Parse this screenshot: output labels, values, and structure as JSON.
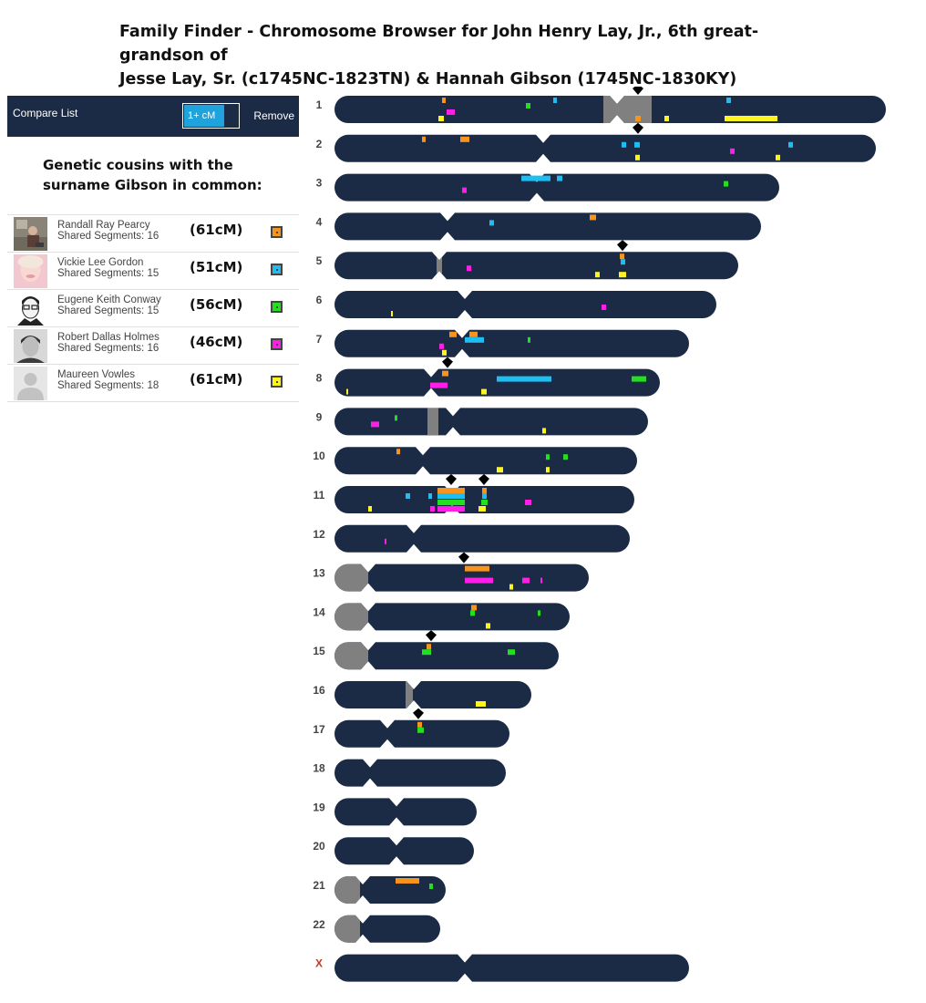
{
  "title": {
    "line1": "Family Finder - Chromosome Browser for John Henry Lay, Jr., 6th great-grandson of",
    "line2": "Jesse Lay, Sr. (c1745NC-1823TN) & Hannah Gibson (1745NC-1830KY)"
  },
  "compare": {
    "title": "Compare List",
    "threshold": "1+ cM",
    "remove": "Remove"
  },
  "subheading": {
    "line1": "Genetic cousins with the",
    "line2": "surname Gibson in common:"
  },
  "matches": [
    {
      "name": "Randall Ray Pearcy",
      "segments": "Shared Segments: 16",
      "cm": "(61cM)",
      "color": "#f7941d",
      "avatar": "photo-outdoor"
    },
    {
      "name": "Vickie Lee Gordon",
      "segments": "Shared Segments: 15",
      "cm": "(51cM)",
      "color": "#1fbef0",
      "avatar": "photo-pink"
    },
    {
      "name": "Eugene Keith Conway",
      "segments": "Shared Segments: 15",
      "cm": "(56cM)",
      "color": "#22e01e",
      "avatar": "photo-sketch"
    },
    {
      "name": "Robert Dallas Holmes",
      "segments": "Shared Segments: 16",
      "cm": "(46cM)",
      "color": "#ff1ee8",
      "avatar": "photo-bw"
    },
    {
      "name": "Maureen Vowles",
      "segments": "Shared Segments: 18",
      "cm": "(61cM)",
      "color": "#fff51e",
      "avatar": "default-person-icon"
    }
  ],
  "colors": {
    "chromosome": "#1c2b45",
    "heterochromatin": "#808080",
    "x_label": "#c0392b"
  },
  "chromosomes": [
    {
      "label": "1",
      "length": 605,
      "centromere": 310,
      "gray": [
        295,
        348
      ],
      "segments": [
        {
          "m": 0,
          "s": 118,
          "e": 122,
          "r": 0
        },
        {
          "m": 4,
          "s": 114,
          "e": 120,
          "r": 3
        },
        {
          "m": 3,
          "s": 123,
          "e": 132,
          "r": 2
        },
        {
          "m": 2,
          "s": 210,
          "e": 215,
          "r": 1
        },
        {
          "m": 1,
          "s": 240,
          "e": 244,
          "r": 0
        },
        {
          "m": 0,
          "s": 330,
          "e": 336,
          "r": 3
        },
        {
          "m": 4,
          "s": 362,
          "e": 367,
          "r": 3
        },
        {
          "m": 1,
          "s": 430,
          "e": 435,
          "r": 0
        },
        {
          "m": 4,
          "s": 428,
          "e": 486,
          "r": 3
        }
      ],
      "markers": [
        333
      ]
    },
    {
      "label": "2",
      "length": 594,
      "centromere": 229,
      "segments": [
        {
          "m": 0,
          "s": 96,
          "e": 100,
          "r": 0
        },
        {
          "m": 0,
          "s": 138,
          "e": 148,
          "r": 0
        },
        {
          "m": 1,
          "s": 315,
          "e": 320,
          "r": 1
        },
        {
          "m": 1,
          "s": 329,
          "e": 335,
          "r": 1
        },
        {
          "m": 4,
          "s": 330,
          "e": 335,
          "r": 3
        },
        {
          "m": 3,
          "s": 434,
          "e": 439,
          "r": 2
        },
        {
          "m": 4,
          "s": 484,
          "e": 489,
          "r": 3
        },
        {
          "m": 1,
          "s": 498,
          "e": 503,
          "r": 1
        }
      ],
      "markers": [
        333
      ]
    },
    {
      "label": "3",
      "length": 488,
      "centromere": 222,
      "segments": [
        {
          "m": 1,
          "s": 205,
          "e": 237,
          "r": 0
        },
        {
          "m": 1,
          "s": 244,
          "e": 250,
          "r": 0
        },
        {
          "m": 3,
          "s": 140,
          "e": 145,
          "r": 2
        },
        {
          "m": 2,
          "s": 427,
          "e": 432,
          "r": 1
        }
      ],
      "markers": []
    },
    {
      "label": "4",
      "length": 468,
      "centromere": 124,
      "segments": [
        {
          "m": 0,
          "s": 280,
          "e": 287,
          "r": 0
        },
        {
          "m": 1,
          "s": 170,
          "e": 175,
          "r": 1
        }
      ],
      "markers": []
    },
    {
      "label": "5",
      "length": 443,
      "centromere": 115,
      "gray": [
        112,
        118
      ],
      "segments": [
        {
          "m": 0,
          "s": 313,
          "e": 318,
          "r": 0
        },
        {
          "m": 1,
          "s": 314,
          "e": 319,
          "r": 1
        },
        {
          "m": 3,
          "s": 145,
          "e": 150,
          "r": 2
        },
        {
          "m": 4,
          "s": 286,
          "e": 291,
          "r": 3
        },
        {
          "m": 4,
          "s": 312,
          "e": 320,
          "r": 3
        }
      ],
      "markers": [
        316
      ]
    },
    {
      "label": "6",
      "length": 419,
      "centromere": 143,
      "segments": [
        {
          "m": 4,
          "s": 62,
          "e": 64,
          "r": 3
        },
        {
          "m": 3,
          "s": 293,
          "e": 298,
          "r": 2
        }
      ],
      "markers": []
    },
    {
      "label": "7",
      "length": 389,
      "centromere": 140,
      "segments": [
        {
          "m": 0,
          "s": 126,
          "e": 134,
          "r": 0
        },
        {
          "m": 0,
          "s": 148,
          "e": 157,
          "r": 0
        },
        {
          "m": 1,
          "s": 143,
          "e": 164,
          "r": 1
        },
        {
          "m": 2,
          "s": 212,
          "e": 215,
          "r": 1
        },
        {
          "m": 3,
          "s": 115,
          "e": 120,
          "r": 2
        },
        {
          "m": 4,
          "s": 118,
          "e": 123,
          "r": 3
        }
      ],
      "markers": []
    },
    {
      "label": "8",
      "length": 357,
      "centromere": 106,
      "segments": [
        {
          "m": 0,
          "s": 118,
          "e": 125,
          "r": 0
        },
        {
          "m": 1,
          "s": 178,
          "e": 238,
          "r": 1
        },
        {
          "m": 2,
          "s": 326,
          "e": 342,
          "r": 1
        },
        {
          "m": 3,
          "s": 105,
          "e": 124,
          "r": 2
        },
        {
          "m": 4,
          "s": 161,
          "e": 167,
          "r": 3
        },
        {
          "m": 4,
          "s": 13,
          "e": 15,
          "r": 3
        }
      ],
      "markers": [
        124
      ]
    },
    {
      "label": "9",
      "length": 344,
      "centromere": 130,
      "gray": [
        102,
        114
      ],
      "segments": [
        {
          "m": 3,
          "s": 40,
          "e": 49,
          "r": 2
        },
        {
          "m": 2,
          "s": 66,
          "e": 69,
          "r": 1
        },
        {
          "m": 4,
          "s": 228,
          "e": 232,
          "r": 3
        }
      ],
      "markers": []
    },
    {
      "label": "10",
      "length": 332,
      "centromere": 97,
      "segments": [
        {
          "m": 0,
          "s": 68,
          "e": 72,
          "r": 0
        },
        {
          "m": 2,
          "s": 232,
          "e": 236,
          "r": 1
        },
        {
          "m": 2,
          "s": 251,
          "e": 256,
          "r": 1
        },
        {
          "m": 4,
          "s": 178,
          "e": 185,
          "r": 3
        },
        {
          "m": 4,
          "s": 232,
          "e": 236,
          "r": 3
        }
      ],
      "markers": []
    },
    {
      "label": "11",
      "length": 329,
      "centromere": 129,
      "segments": [
        {
          "m": 0,
          "s": 113,
          "e": 143,
          "r": 0
        },
        {
          "m": 1,
          "s": 113,
          "e": 143,
          "r": 1
        },
        {
          "m": 2,
          "s": 113,
          "e": 143,
          "r": 2
        },
        {
          "m": 3,
          "s": 113,
          "e": 143,
          "r": 3
        },
        {
          "m": 1,
          "s": 78,
          "e": 83,
          "r": 1
        },
        {
          "m": 1,
          "s": 103,
          "e": 107,
          "r": 1
        },
        {
          "m": 3,
          "s": 105,
          "e": 110,
          "r": 3
        },
        {
          "m": 0,
          "s": 162,
          "e": 167,
          "r": 0
        },
        {
          "m": 1,
          "s": 162,
          "e": 167,
          "r": 1
        },
        {
          "m": 2,
          "s": 161,
          "e": 168,
          "r": 2
        },
        {
          "m": 4,
          "s": 158,
          "e": 166,
          "r": 3
        },
        {
          "m": 3,
          "s": 209,
          "e": 216,
          "r": 2
        },
        {
          "m": 4,
          "s": 37,
          "e": 41,
          "r": 3
        }
      ],
      "markers": [
        128,
        164
      ]
    },
    {
      "label": "12",
      "length": 324,
      "centromere": 87,
      "segments": [
        {
          "m": 3,
          "s": 55,
          "e": 57,
          "r": 2
        }
      ],
      "markers": []
    },
    {
      "label": "13",
      "length": 279,
      "centromere": 37,
      "gray": [
        0,
        37
      ],
      "segments": [
        {
          "m": 0,
          "s": 143,
          "e": 170,
          "r": 0
        },
        {
          "m": 3,
          "s": 143,
          "e": 174,
          "r": 2
        },
        {
          "m": 3,
          "s": 206,
          "e": 214,
          "r": 2
        },
        {
          "m": 4,
          "s": 192,
          "e": 196,
          "r": 3
        },
        {
          "m": 3,
          "s": 226,
          "e": 228,
          "r": 2
        }
      ],
      "markers": [
        142
      ]
    },
    {
      "label": "14",
      "length": 258,
      "centromere": 37,
      "gray": [
        0,
        37
      ],
      "segments": [
        {
          "m": 0,
          "s": 150,
          "e": 156,
          "r": 0
        },
        {
          "m": 2,
          "s": 149,
          "e": 154,
          "r": 1
        },
        {
          "m": 4,
          "s": 166,
          "e": 171,
          "r": 3
        },
        {
          "m": 2,
          "s": 223,
          "e": 226,
          "r": 1
        }
      ],
      "markers": []
    },
    {
      "label": "15",
      "length": 246,
      "centromere": 37,
      "gray": [
        0,
        37
      ],
      "segments": [
        {
          "m": 0,
          "s": 101,
          "e": 106,
          "r": 0
        },
        {
          "m": 2,
          "s": 96,
          "e": 106,
          "r": 1
        },
        {
          "m": 2,
          "s": 190,
          "e": 198,
          "r": 1
        }
      ],
      "markers": [
        106
      ]
    },
    {
      "label": "16",
      "length": 216,
      "centromere": 87,
      "gray": [
        78,
        86
      ],
      "segments": [
        {
          "m": 4,
          "s": 155,
          "e": 166,
          "r": 3
        }
      ],
      "markers": []
    },
    {
      "label": "17",
      "length": 192,
      "centromere": 58,
      "segments": [
        {
          "m": 0,
          "s": 91,
          "e": 96,
          "r": 0
        },
        {
          "m": 2,
          "s": 91,
          "e": 98,
          "r": 1
        }
      ],
      "markers": [
        92
      ]
    },
    {
      "label": "18",
      "length": 188,
      "centromere": 39,
      "segments": [],
      "markers": []
    },
    {
      "label": "19",
      "length": 156,
      "centromere": 68,
      "segments": [],
      "markers": []
    },
    {
      "label": "20",
      "length": 153,
      "centromere": 68,
      "segments": [],
      "markers": []
    },
    {
      "label": "21",
      "length": 122,
      "centromere": 31,
      "gray": [
        0,
        28
      ],
      "segments": [
        {
          "m": 0,
          "s": 67,
          "e": 93,
          "r": 0
        },
        {
          "m": 2,
          "s": 104,
          "e": 108,
          "r": 1
        }
      ],
      "markers": []
    },
    {
      "label": "22",
      "length": 116,
      "centromere": 31,
      "gray": [
        0,
        28
      ],
      "segments": [],
      "markers": []
    },
    {
      "label": "X",
      "length": 389,
      "centromere": 143,
      "segments": [],
      "markers": []
    }
  ]
}
